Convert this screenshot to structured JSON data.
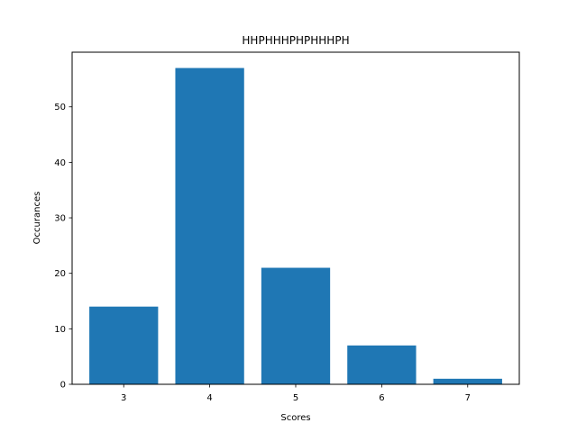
{
  "chart_data": {
    "type": "bar",
    "title": "HHPHHHPHPHHHPH",
    "xlabel": "Scores",
    "ylabel": "Occurances",
    "categories": [
      "3",
      "4",
      "5",
      "6",
      "7"
    ],
    "values": [
      14,
      57,
      21,
      7,
      1
    ],
    "x_values": [
      3,
      4,
      5,
      6,
      7
    ],
    "xlim": [
      2.4,
      7.6
    ],
    "ylim": [
      0,
      59.85
    ],
    "yticks": [
      0,
      10,
      20,
      30,
      40,
      50
    ],
    "bar_color": "#1f77b4",
    "grid": false,
    "legend": "none"
  }
}
